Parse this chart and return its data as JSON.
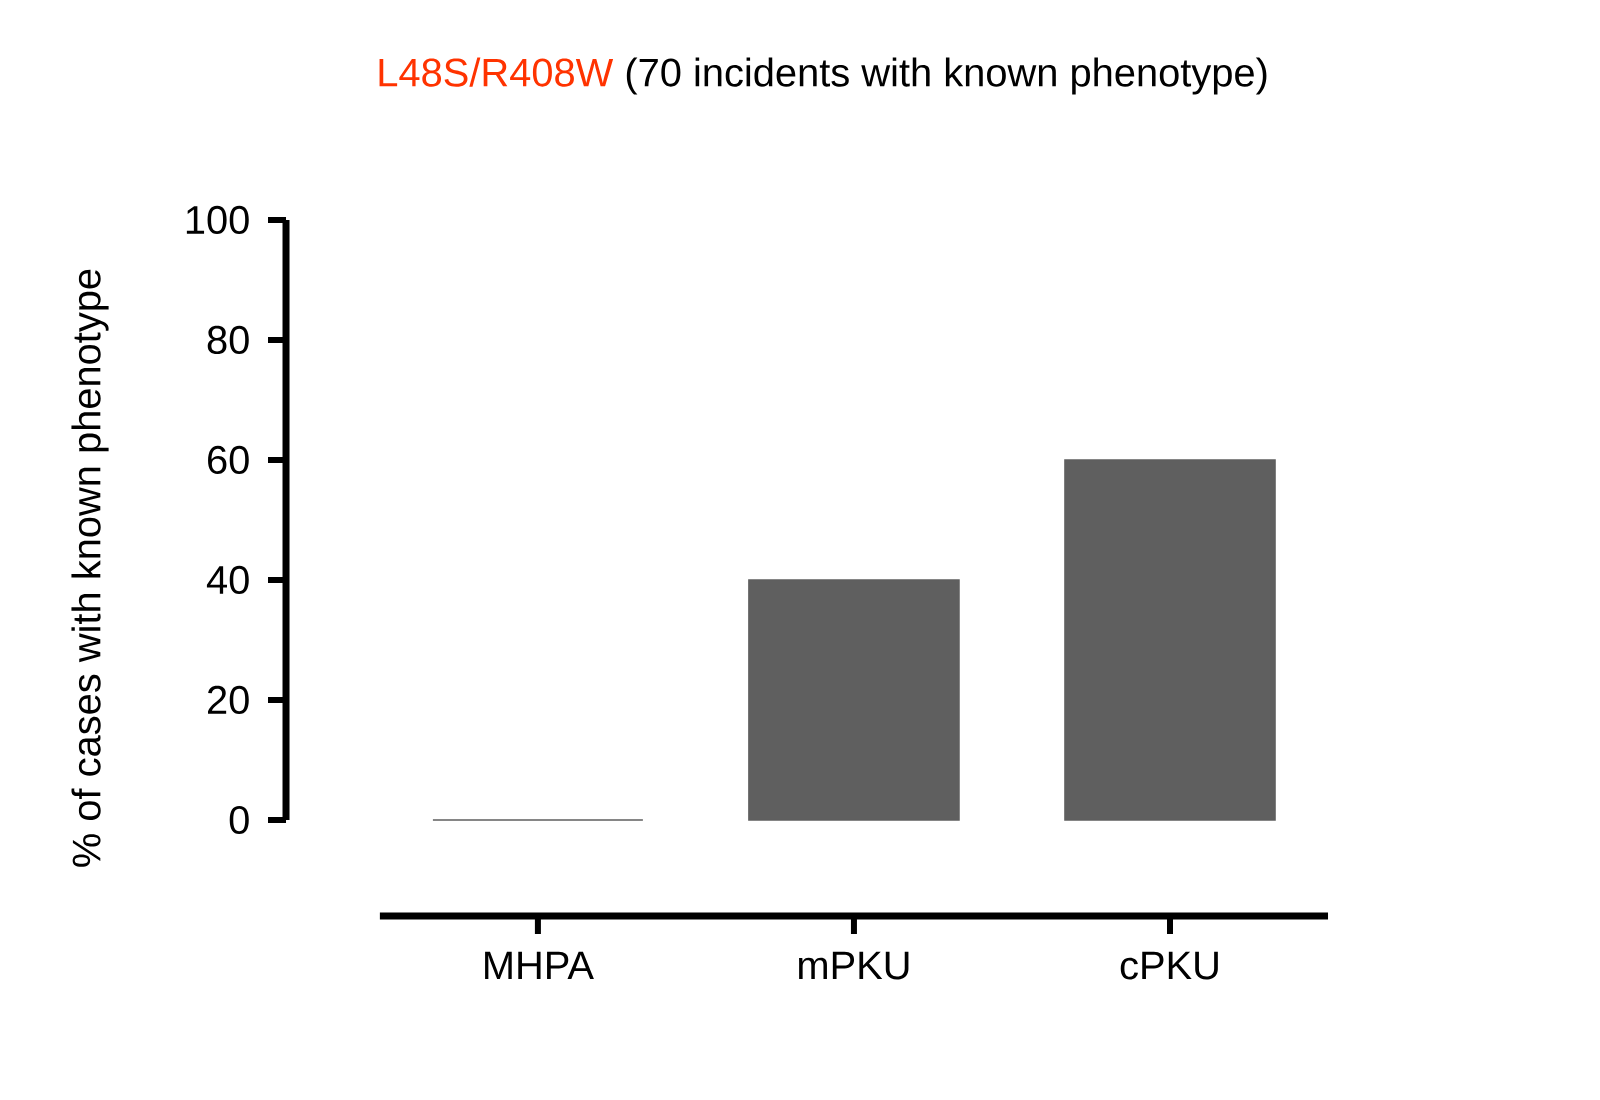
{
  "chart_data": {
    "type": "bar",
    "title": "L48S/R408W",
    "subtitle": "(70 incidents with known phenotype)",
    "ylabel": "% of cases with known phenotype",
    "categories": [
      "MHPA",
      "mPKU",
      "cPKU"
    ],
    "values": [
      0,
      40,
      60
    ],
    "color": "#5f5f5f",
    "ylim": [
      0,
      100
    ],
    "yticks": [
      0,
      20,
      40,
      60,
      80,
      100
    ]
  }
}
